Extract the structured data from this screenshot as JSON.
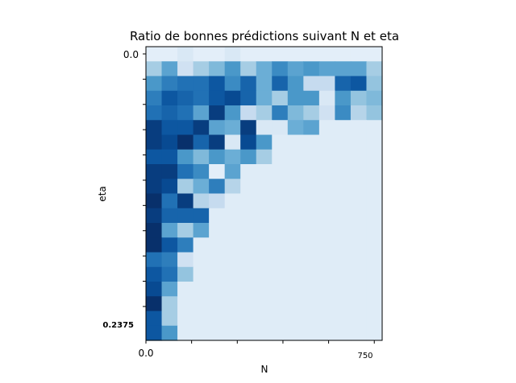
{
  "chart_data": {
    "type": "heatmap",
    "title": "Ratio de bonnes prédictions suivant N et eta",
    "xlabel": "N",
    "ylabel": "eta",
    "x_tick_labels": {
      "start": "0.0",
      "end": "750"
    },
    "y_tick_labels": {
      "top": "0.0",
      "bottom": "0.2375"
    },
    "grid": false,
    "legend": "none",
    "colormap": "Blues",
    "colormap_stops": [
      "#f7fbff",
      "#deebf7",
      "#c6dbef",
      "#9ecae1",
      "#6baed6",
      "#4292c6",
      "#2171b5",
      "#08519c",
      "#08306b"
    ],
    "rows": 20,
    "cols": 15,
    "values": [
      [
        0.1,
        0.1,
        0.15,
        0.1,
        0.1,
        0.15,
        0.1,
        0.1,
        0.1,
        0.1,
        0.1,
        0.1,
        0.1,
        0.1,
        0.1
      ],
      [
        0.35,
        0.55,
        0.2,
        0.35,
        0.45,
        0.6,
        0.35,
        0.5,
        0.65,
        0.55,
        0.6,
        0.55,
        0.55,
        0.55,
        0.35
      ],
      [
        0.6,
        0.7,
        0.75,
        0.75,
        0.85,
        0.65,
        0.8,
        0.5,
        0.8,
        0.6,
        0.25,
        0.25,
        0.8,
        0.85,
        0.4
      ],
      [
        0.7,
        0.85,
        0.8,
        0.75,
        0.85,
        0.9,
        0.8,
        0.5,
        0.35,
        0.6,
        0.6,
        0.15,
        0.6,
        0.4,
        0.45
      ],
      [
        0.75,
        0.8,
        0.75,
        0.55,
        0.95,
        0.6,
        0.25,
        0.35,
        0.7,
        0.45,
        0.35,
        0.2,
        0.65,
        0.3,
        0.4
      ],
      [
        0.95,
        0.85,
        0.85,
        0.95,
        0.55,
        0.5,
        0.95,
        0.15,
        0.15,
        0.5,
        0.55,
        0.12,
        0.12,
        0.12,
        0.12
      ],
      [
        0.95,
        0.9,
        1.0,
        0.8,
        0.95,
        0.15,
        0.9,
        0.6,
        0.12,
        0.12,
        0.12,
        0.12,
        0.12,
        0.12,
        0.12
      ],
      [
        0.85,
        0.85,
        0.6,
        0.45,
        0.6,
        0.5,
        0.6,
        0.35,
        0.12,
        0.12,
        0.12,
        0.12,
        0.12,
        0.12,
        0.12
      ],
      [
        0.95,
        0.95,
        0.75,
        0.65,
        0.1,
        0.55,
        0.12,
        0.12,
        0.12,
        0.12,
        0.12,
        0.12,
        0.12,
        0.12,
        0.12
      ],
      [
        0.95,
        0.9,
        0.35,
        0.5,
        0.7,
        0.3,
        0.12,
        0.12,
        0.12,
        0.12,
        0.12,
        0.12,
        0.12,
        0.12,
        0.12
      ],
      [
        1.0,
        0.75,
        0.95,
        0.3,
        0.25,
        0.12,
        0.12,
        0.12,
        0.12,
        0.12,
        0.12,
        0.12,
        0.12,
        0.12,
        0.12
      ],
      [
        0.95,
        0.8,
        0.8,
        0.8,
        0.12,
        0.12,
        0.12,
        0.12,
        0.12,
        0.12,
        0.12,
        0.12,
        0.12,
        0.12,
        0.12
      ],
      [
        1.0,
        0.55,
        0.35,
        0.55,
        0.12,
        0.12,
        0.12,
        0.12,
        0.12,
        0.12,
        0.12,
        0.12,
        0.12,
        0.12,
        0.12
      ],
      [
        1.0,
        0.85,
        0.7,
        0.12,
        0.12,
        0.12,
        0.12,
        0.12,
        0.12,
        0.12,
        0.12,
        0.12,
        0.12,
        0.12,
        0.12
      ],
      [
        0.75,
        0.7,
        0.2,
        0.12,
        0.12,
        0.12,
        0.12,
        0.12,
        0.12,
        0.12,
        0.12,
        0.12,
        0.12,
        0.12,
        0.12
      ],
      [
        0.85,
        0.75,
        0.4,
        0.12,
        0.12,
        0.12,
        0.12,
        0.12,
        0.12,
        0.12,
        0.12,
        0.12,
        0.12,
        0.12,
        0.12
      ],
      [
        0.9,
        0.55,
        0.12,
        0.12,
        0.12,
        0.12,
        0.12,
        0.12,
        0.12,
        0.12,
        0.12,
        0.12,
        0.12,
        0.12,
        0.12
      ],
      [
        1.0,
        0.35,
        0.12,
        0.12,
        0.12,
        0.12,
        0.12,
        0.12,
        0.12,
        0.12,
        0.12,
        0.12,
        0.12,
        0.12,
        0.12
      ],
      [
        0.85,
        0.35,
        0.12,
        0.12,
        0.12,
        0.12,
        0.12,
        0.12,
        0.12,
        0.12,
        0.12,
        0.12,
        0.12,
        0.12,
        0.12
      ],
      [
        0.85,
        0.6,
        0.12,
        0.12,
        0.12,
        0.12,
        0.12,
        0.12,
        0.12,
        0.12,
        0.12,
        0.12,
        0.12,
        0.12,
        0.12
      ]
    ]
  }
}
